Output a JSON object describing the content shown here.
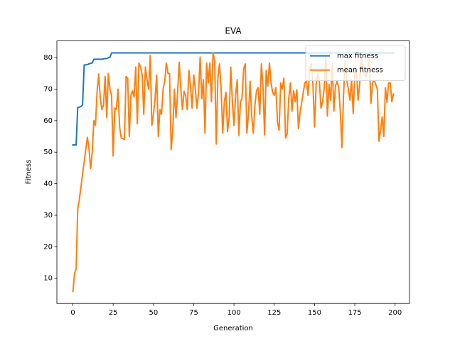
{
  "chart_data": {
    "type": "line",
    "title": "EVA",
    "x_label": "Generation",
    "y_label": "Fitness",
    "x": [
      0,
      1,
      2,
      3,
      4,
      5,
      6,
      7,
      8,
      9,
      10,
      11,
      12,
      13,
      14,
      15,
      16,
      17,
      18,
      19,
      20,
      21,
      22,
      23,
      24,
      25,
      26,
      27,
      28,
      29,
      30,
      31,
      32,
      33,
      34,
      35,
      36,
      37,
      38,
      39,
      40,
      41,
      42,
      43,
      44,
      45,
      46,
      47,
      48,
      49,
      50,
      51,
      52,
      53,
      54,
      55,
      56,
      57,
      58,
      59,
      60,
      61,
      62,
      63,
      64,
      65,
      66,
      67,
      68,
      69,
      70,
      71,
      72,
      73,
      74,
      75,
      76,
      77,
      78,
      79,
      80,
      81,
      82,
      83,
      84,
      85,
      86,
      87,
      88,
      89,
      90,
      91,
      92,
      93,
      94,
      95,
      96,
      97,
      98,
      99,
      100,
      101,
      102,
      103,
      104,
      105,
      106,
      107,
      108,
      109,
      110,
      111,
      112,
      113,
      114,
      115,
      116,
      117,
      118,
      119,
      120,
      121,
      122,
      123,
      124,
      125,
      126,
      127,
      128,
      129,
      130,
      131,
      132,
      133,
      134,
      135,
      136,
      137,
      138,
      139,
      140,
      141,
      142,
      143,
      144,
      145,
      146,
      147,
      148,
      149,
      150,
      151,
      152,
      153,
      154,
      155,
      156,
      157,
      158,
      159,
      160,
      161,
      162,
      163,
      164,
      165,
      166,
      167,
      168,
      169,
      170,
      171,
      172,
      173,
      174,
      175,
      176,
      177,
      178,
      179,
      180,
      181,
      182,
      183,
      184,
      185,
      186,
      187,
      188,
      189,
      190,
      191,
      192,
      193,
      194,
      195,
      196,
      197,
      198,
      199
    ],
    "series": [
      {
        "name": "max fitness",
        "color": "#1f77b4",
        "values": [
          52.3,
          52.3,
          52.3,
          64.2,
          64.3,
          64.5,
          65,
          77.7,
          77.7,
          77.8,
          78,
          78.2,
          78.3,
          79.5,
          79.5,
          79.5,
          79.5,
          79.5,
          79.5,
          79.6,
          79.7,
          79.7,
          80,
          80.1,
          81.5,
          81.5,
          81.5,
          81.5,
          81.5,
          81.5,
          81.5,
          81.5,
          81.5,
          81.5,
          81.5,
          81.5,
          81.5,
          81.5,
          81.5,
          81.5,
          81.5,
          81.5,
          81.5,
          81.5,
          81.5,
          81.5,
          81.5,
          81.5,
          81.5,
          81.5,
          81.5,
          81.5,
          81.5,
          81.5,
          81.5,
          81.5,
          81.5,
          81.5,
          81.5,
          81.5,
          81.5,
          81.5,
          81.5,
          81.5,
          81.5,
          81.5,
          81.5,
          81.5,
          81.5,
          81.5,
          81.5,
          81.5,
          81.5,
          81.5,
          81.5,
          81.5,
          81.5,
          81.5,
          81.5,
          81.5,
          81.5,
          81.5,
          81.5,
          81.5,
          81.5,
          81.5,
          81.5,
          81.5,
          81.5,
          81.5,
          81.5,
          81.5,
          81.5,
          81.5,
          81.5,
          81.5,
          81.5,
          81.5,
          81.5,
          81.5,
          81.5,
          81.5,
          81.5,
          81.5,
          81.5,
          81.5,
          81.5,
          81.5,
          81.5,
          81.5,
          81.5,
          81.5,
          81.5,
          81.5,
          81.5,
          81.5,
          81.5,
          81.5,
          81.5,
          81.5,
          81.5,
          81.5,
          81.5,
          81.5,
          81.5,
          81.5,
          81.5,
          81.5,
          81.5,
          81.5,
          81.5,
          81.5,
          81.5,
          81.5,
          81.5,
          81.5,
          81.5,
          81.5,
          81.5,
          81.5,
          81.5,
          81.5,
          81.5,
          81.5,
          81.5,
          81.5,
          81.5,
          81.5,
          81.5,
          81.5,
          81.5,
          81.5,
          81.5,
          81.5,
          81.5,
          81.5,
          81.5,
          81.5,
          81.5,
          81.5,
          81.5,
          81.5,
          81.5,
          81.5,
          81.5,
          81.5,
          81.5,
          81.5,
          81.5,
          81.5,
          81.5,
          81.5,
          81.5,
          81.5,
          81.5,
          81.5,
          81.5,
          81.5,
          81.5,
          81.5,
          81.5,
          81.5,
          81.5,
          81.5,
          81.5,
          81.5,
          81.5,
          81.5,
          81.5,
          81.5,
          81.5,
          81.5,
          81.5,
          81.5,
          81.5,
          81.5,
          81.5,
          81.5,
          81.5,
          81.5
        ]
      },
      {
        "name": "mean fitness",
        "color": "#ff7f0e",
        "values": [
          5.8,
          11.5,
          13,
          32,
          35,
          39,
          43,
          47,
          51,
          54.7,
          51,
          44.8,
          50,
          60,
          58.5,
          69,
          74.8,
          67,
          63.5,
          65,
          74,
          61,
          75,
          70,
          68,
          48.8,
          64,
          63.5,
          70,
          58,
          54.5,
          54.3,
          54,
          74,
          73.5,
          55,
          68,
          69.5,
          67.5,
          77,
          59,
          78.3,
          77,
          74.5,
          62,
          77,
          73,
          70,
          80.7,
          58.5,
          62,
          67,
          74.5,
          55,
          63.5,
          62,
          70,
          72.5,
          78.3,
          75,
          75,
          50.8,
          57,
          70,
          61,
          69,
          78.5,
          70,
          63.5,
          69.3,
          68,
          63.5,
          76,
          71,
          64,
          74.5,
          70,
          64,
          69,
          80.2,
          67,
          73,
          56,
          78.3,
          72,
          78.3,
          66,
          81.5,
          79,
          52.6,
          73.5,
          78,
          70,
          56,
          66,
          69,
          56.5,
          61.3,
          77,
          66,
          58.5,
          68,
          73,
          55.3,
          66,
          67,
          76.5,
          78,
          56,
          62,
          72.5,
          61.5,
          56,
          65,
          69.5,
          70.5,
          62,
          78,
          71,
          55.5,
          76,
          71,
          78.3,
          72,
          69,
          68,
          70.5,
          59.5,
          57,
          72,
          70,
          73.5,
          54.5,
          55.8,
          67,
          72,
          63,
          69.5,
          66,
          69.8,
          57.5,
          62.5,
          65.7,
          69,
          72,
          72.5,
          68,
          77,
          78,
          71.6,
          58,
          71.5,
          75,
          72.5,
          64,
          66,
          70.3,
          80.5,
          61.5,
          71.5,
          66.5,
          78,
          63,
          71,
          72.5,
          70.5,
          62.8,
          51.5,
          68,
          79,
          73,
          70,
          66.5,
          73,
          62.3,
          75,
          77,
          66.5,
          71.5,
          80,
          76,
          74.5,
          74,
          76,
          79.5,
          65.5,
          72,
          73,
          71.5,
          70,
          53.5,
          57,
          61.2,
          55,
          70.5,
          65.8,
          72,
          72,
          66,
          68.5
        ]
      }
    ],
    "xlim": [
      -9.95,
      208.95
    ],
    "ylim": [
      2.0,
      85.3
    ],
    "xticks": [
      0,
      25,
      50,
      75,
      100,
      125,
      150,
      175,
      200
    ],
    "yticks": [
      10,
      20,
      30,
      40,
      50,
      60,
      70,
      80
    ],
    "legend": "upper right"
  }
}
